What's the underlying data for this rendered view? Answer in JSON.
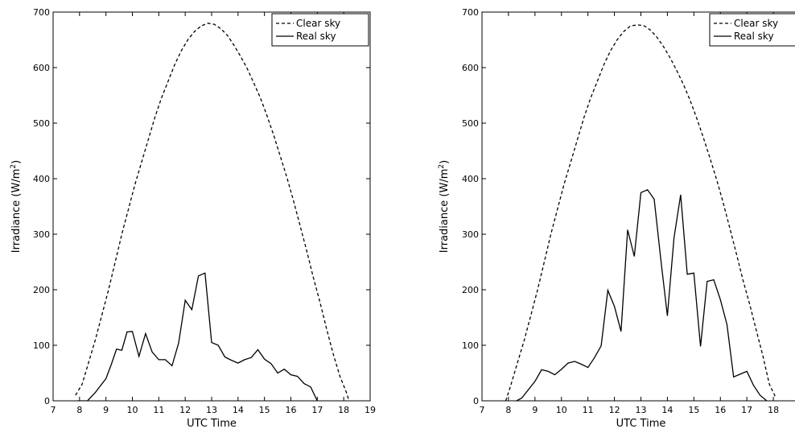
{
  "chart_data": [
    {
      "type": "line",
      "xlabel": "UTC Time",
      "ylabel": "Irradiance  (W/m",
      "ylabel_sup": "2",
      "ylabel_tail": ")",
      "xlim": [
        7,
        19
      ],
      "ylim": [
        0,
        700
      ],
      "xticks": [
        "7",
        "8",
        "9",
        "10",
        "11",
        "12",
        "13",
        "14",
        "15",
        "16",
        "17",
        "18",
        "19"
      ],
      "yticks": [
        "0",
        "100",
        "200",
        "300",
        "400",
        "500",
        "600",
        "700"
      ],
      "legend_placement": "top-right",
      "series": [
        {
          "name": "Clear sky",
          "style": "dashed",
          "x": [
            7.85,
            8.1,
            8.35,
            8.6,
            8.85,
            9.1,
            9.35,
            9.6,
            9.85,
            10.1,
            10.35,
            10.6,
            10.85,
            11.1,
            11.35,
            11.6,
            11.85,
            12.1,
            12.35,
            12.6,
            12.85,
            13.1,
            13.35,
            13.6,
            13.85,
            14.1,
            14.35,
            14.6,
            14.85,
            15.1,
            15.35,
            15.6,
            15.85,
            16.1,
            16.35,
            16.6,
            16.85,
            17.1,
            17.35,
            17.6,
            17.85,
            18.1,
            18.2
          ],
          "y": [
            10,
            30,
            70,
            110,
            155,
            200,
            250,
            300,
            345,
            390,
            430,
            470,
            510,
            545,
            575,
            605,
            630,
            650,
            665,
            675,
            680,
            678,
            670,
            658,
            640,
            620,
            598,
            572,
            545,
            513,
            478,
            440,
            402,
            360,
            315,
            270,
            222,
            178,
            130,
            85,
            45,
            15,
            0
          ]
        },
        {
          "name": "Real sky",
          "style": "solid",
          "x": [
            7.9,
            8.3,
            8.6,
            9.0,
            9.2,
            9.4,
            9.6,
            9.8,
            10.0,
            10.25,
            10.5,
            10.75,
            11.0,
            11.25,
            11.5,
            11.75,
            12.0,
            12.25,
            12.5,
            12.75,
            13.0,
            13.25,
            13.5,
            13.75,
            14.0,
            14.25,
            14.5,
            14.75,
            15.0,
            15.25,
            15.5,
            15.75,
            16.0,
            16.25,
            16.5,
            16.75,
            17.0
          ],
          "y": [
            0,
            0,
            15,
            40,
            65,
            93,
            91,
            124,
            125,
            80,
            121,
            88,
            74,
            74,
            63,
            104,
            181,
            164,
            225,
            230,
            105,
            100,
            79,
            73,
            68,
            74,
            78,
            92,
            75,
            67,
            50,
            57,
            47,
            44,
            31,
            25,
            0
          ]
        }
      ]
    },
    {
      "type": "line",
      "xlabel": "UTC Time",
      "ylabel": "Irradiance  (W/m",
      "ylabel_sup": "2",
      "ylabel_tail": ")",
      "xlim": [
        7,
        19
      ],
      "ylim": [
        0,
        700
      ],
      "xticks": [
        "7",
        "8",
        "9",
        "10",
        "11",
        "12",
        "13",
        "14",
        "15",
        "16",
        "17",
        "18",
        "19"
      ],
      "yticks": [
        "0",
        "100",
        "200",
        "300",
        "400",
        "500",
        "600",
        "700"
      ],
      "legend_placement": "top-right",
      "series": [
        {
          "name": "Clear sky",
          "style": "dashed",
          "x": [
            7.9,
            8.1,
            8.35,
            8.6,
            8.85,
            9.1,
            9.35,
            9.6,
            9.85,
            10.1,
            10.35,
            10.6,
            10.85,
            11.1,
            11.35,
            11.6,
            11.85,
            12.1,
            12.35,
            12.6,
            12.85,
            13.1,
            13.35,
            13.6,
            13.85,
            14.1,
            14.35,
            14.6,
            14.85,
            15.1,
            15.35,
            15.6,
            15.85,
            16.1,
            16.35,
            16.6,
            16.85,
            17.1,
            17.35,
            17.6,
            17.85,
            18.1
          ],
          "y": [
            0,
            30,
            70,
            110,
            155,
            200,
            250,
            300,
            345,
            390,
            430,
            470,
            510,
            545,
            575,
            605,
            630,
            650,
            665,
            675,
            677,
            676,
            668,
            655,
            638,
            618,
            595,
            570,
            542,
            510,
            475,
            438,
            400,
            358,
            312,
            266,
            218,
            175,
            128,
            82,
            30,
            5
          ]
        },
        {
          "name": "Real sky",
          "style": "solid",
          "x": [
            8.3,
            8.5,
            9.0,
            9.25,
            9.5,
            9.75,
            10.0,
            10.25,
            10.5,
            10.75,
            11.0,
            11.25,
            11.5,
            11.75,
            12.0,
            12.25,
            12.5,
            12.75,
            13.0,
            13.25,
            13.5,
            13.75,
            14.0,
            14.25,
            14.5,
            14.75,
            15.0,
            15.25,
            15.5,
            15.75,
            16.0,
            16.25,
            16.5,
            16.75,
            17.0,
            17.25,
            17.5,
            17.75
          ],
          "y": [
            0,
            5,
            35,
            56,
            53,
            47,
            57,
            68,
            71,
            66,
            60,
            78,
            99,
            199,
            170,
            125,
            308,
            260,
            375,
            380,
            363,
            255,
            153,
            293,
            371,
            228,
            230,
            98,
            215,
            218,
            182,
            137,
            43,
            48,
            53,
            28,
            10,
            0
          ]
        }
      ]
    }
  ]
}
